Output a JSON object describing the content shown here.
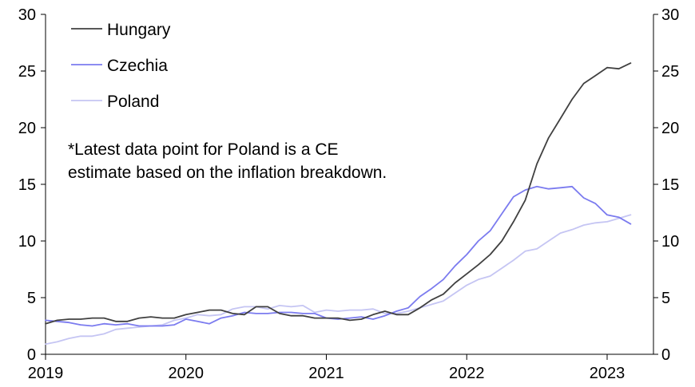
{
  "chart_data": {
    "type": "line",
    "x_axis": {
      "ticks": [
        "2019",
        "2020",
        "2021",
        "2022",
        "2023"
      ],
      "range": [
        2019.0,
        2023.33
      ]
    },
    "y_axis_left": {
      "ticks": [
        "0",
        "5",
        "10",
        "15",
        "20",
        "25",
        "30"
      ],
      "range": [
        0,
        30
      ]
    },
    "y_axis_right": {
      "ticks": [
        "0",
        "5",
        "10",
        "15",
        "20",
        "25",
        "30"
      ],
      "range": [
        0,
        30
      ]
    },
    "grid": false,
    "legend_position": "top-left",
    "annotation": {
      "lines": [
        "*Latest data point for Poland is a CE",
        "estimate based on the inflation breakdown."
      ]
    },
    "series": [
      {
        "name": "Hungary",
        "color": "#404040",
        "x": [
          2019.0,
          2019.083,
          2019.167,
          2019.25,
          2019.333,
          2019.417,
          2019.5,
          2019.583,
          2019.667,
          2019.75,
          2019.833,
          2019.917,
          2020.0,
          2020.083,
          2020.167,
          2020.25,
          2020.333,
          2020.417,
          2020.5,
          2020.583,
          2020.667,
          2020.75,
          2020.833,
          2020.917,
          2021.0,
          2021.083,
          2021.167,
          2021.25,
          2021.333,
          2021.417,
          2021.5,
          2021.583,
          2021.667,
          2021.75,
          2021.833,
          2021.917,
          2022.0,
          2022.083,
          2022.167,
          2022.25,
          2022.333,
          2022.417,
          2022.5,
          2022.583,
          2022.667,
          2022.75,
          2022.833,
          2022.917,
          2023.0,
          2023.083,
          2023.167
        ],
        "values": [
          2.7,
          3.0,
          3.1,
          3.1,
          3.2,
          3.2,
          2.9,
          2.9,
          3.2,
          3.3,
          3.2,
          3.2,
          3.5,
          3.7,
          3.9,
          3.9,
          3.6,
          3.5,
          4.2,
          4.2,
          3.6,
          3.4,
          3.4,
          3.2,
          3.2,
          3.2,
          3.0,
          3.1,
          3.5,
          3.8,
          3.5,
          3.5,
          4.1,
          4.8,
          5.3,
          6.3,
          7.1,
          7.9,
          8.8,
          10.0,
          11.7,
          13.6,
          16.8,
          19.1,
          20.8,
          22.5,
          23.9,
          24.6,
          25.3,
          25.2,
          25.7
        ]
      },
      {
        "name": "Czechia",
        "color": "#7b7bef",
        "x": [
          2019.0,
          2019.083,
          2019.167,
          2019.25,
          2019.333,
          2019.417,
          2019.5,
          2019.583,
          2019.667,
          2019.75,
          2019.833,
          2019.917,
          2020.0,
          2020.083,
          2020.167,
          2020.25,
          2020.333,
          2020.417,
          2020.5,
          2020.583,
          2020.667,
          2020.75,
          2020.833,
          2020.917,
          2021.0,
          2021.083,
          2021.167,
          2021.25,
          2021.333,
          2021.417,
          2021.5,
          2021.583,
          2021.667,
          2021.75,
          2021.833,
          2021.917,
          2022.0,
          2022.083,
          2022.167,
          2022.25,
          2022.333,
          2022.417,
          2022.5,
          2022.583,
          2022.667,
          2022.75,
          2022.833,
          2022.917,
          2023.0,
          2023.083,
          2023.167
        ],
        "values": [
          3.0,
          2.9,
          2.8,
          2.6,
          2.5,
          2.7,
          2.6,
          2.7,
          2.5,
          2.5,
          2.5,
          2.6,
          3.1,
          2.9,
          2.7,
          3.2,
          3.4,
          3.7,
          3.6,
          3.6,
          3.7,
          3.7,
          3.6,
          3.6,
          3.2,
          3.1,
          3.2,
          3.3,
          3.1,
          3.4,
          3.8,
          4.1,
          5.1,
          5.8,
          6.6,
          7.8,
          8.8,
          10.0,
          10.9,
          12.4,
          13.9,
          14.5,
          14.8,
          14.6,
          14.7,
          14.8,
          13.8,
          13.3,
          12.3,
          12.1,
          11.5
        ]
      },
      {
        "name": "Poland",
        "color": "#c5c5f3",
        "x": [
          2019.0,
          2019.083,
          2019.167,
          2019.25,
          2019.333,
          2019.417,
          2019.5,
          2019.583,
          2019.667,
          2019.75,
          2019.833,
          2019.917,
          2020.0,
          2020.083,
          2020.167,
          2020.25,
          2020.333,
          2020.417,
          2020.5,
          2020.583,
          2020.667,
          2020.75,
          2020.833,
          2020.917,
          2021.0,
          2021.083,
          2021.167,
          2021.25,
          2021.333,
          2021.417,
          2021.5,
          2021.583,
          2021.667,
          2021.75,
          2021.833,
          2021.917,
          2022.0,
          2022.083,
          2022.167,
          2022.25,
          2022.333,
          2022.417,
          2022.5,
          2022.583,
          2022.667,
          2022.75,
          2022.833,
          2022.917,
          2023.0,
          2023.083,
          2023.167
        ],
        "values": [
          0.9,
          1.1,
          1.4,
          1.6,
          1.6,
          1.8,
          2.2,
          2.3,
          2.4,
          2.5,
          2.6,
          3.0,
          3.2,
          3.5,
          3.4,
          3.5,
          4.0,
          4.2,
          4.2,
          4.0,
          4.3,
          4.2,
          4.3,
          3.7,
          3.9,
          3.8,
          3.9,
          3.9,
          4.0,
          3.6,
          3.6,
          3.8,
          4.1,
          4.4,
          4.7,
          5.4,
          6.1,
          6.6,
          6.9,
          7.6,
          8.3,
          9.1,
          9.3,
          10.0,
          10.7,
          11.0,
          11.4,
          11.6,
          11.7,
          12.0,
          12.3
        ]
      }
    ]
  }
}
